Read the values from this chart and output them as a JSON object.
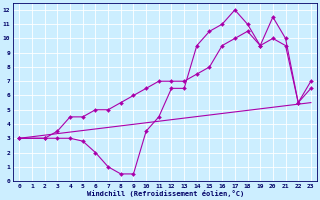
{
  "xlabel": "Windchill (Refroidissement éolien,°C)",
  "ylabel": "",
  "bg_color": "#cceeff",
  "line_color": "#aa00aa",
  "grid_color": "#ffffff",
  "xlim": [
    -0.5,
    23.5
  ],
  "ylim": [
    0,
    12.5
  ],
  "xticks": [
    0,
    1,
    2,
    3,
    4,
    5,
    6,
    7,
    8,
    9,
    10,
    11,
    12,
    13,
    14,
    15,
    16,
    17,
    18,
    19,
    20,
    21,
    22,
    23
  ],
  "yticks": [
    0,
    1,
    2,
    3,
    4,
    5,
    6,
    7,
    8,
    9,
    10,
    11,
    12
  ],
  "series1_x": [
    0,
    2,
    3,
    4,
    5,
    6,
    7,
    8,
    9,
    10,
    11,
    12,
    13,
    14,
    15,
    16,
    17,
    18,
    19,
    20,
    21,
    22,
    23
  ],
  "series1_y": [
    3,
    3,
    3,
    3,
    2.8,
    2,
    1,
    0.5,
    0.5,
    3.5,
    4.5,
    6.5,
    6.5,
    9.5,
    10.5,
    11,
    12,
    11,
    9.5,
    11.5,
    10,
    5.5,
    7
  ],
  "series2_x": [
    0,
    2,
    3,
    4,
    5,
    6,
    7,
    8,
    9,
    10,
    11,
    12,
    13,
    14,
    15,
    16,
    17,
    18,
    19,
    20,
    21,
    22,
    23
  ],
  "series2_y": [
    3,
    3,
    3.5,
    4.5,
    4.5,
    5,
    5,
    5.5,
    6,
    6.5,
    7,
    7,
    7,
    7.5,
    8,
    9.5,
    10,
    10.5,
    9.5,
    10,
    9.5,
    5.5,
    6.5
  ],
  "series3_x": [
    0,
    23
  ],
  "series3_y": [
    3,
    5.5
  ]
}
